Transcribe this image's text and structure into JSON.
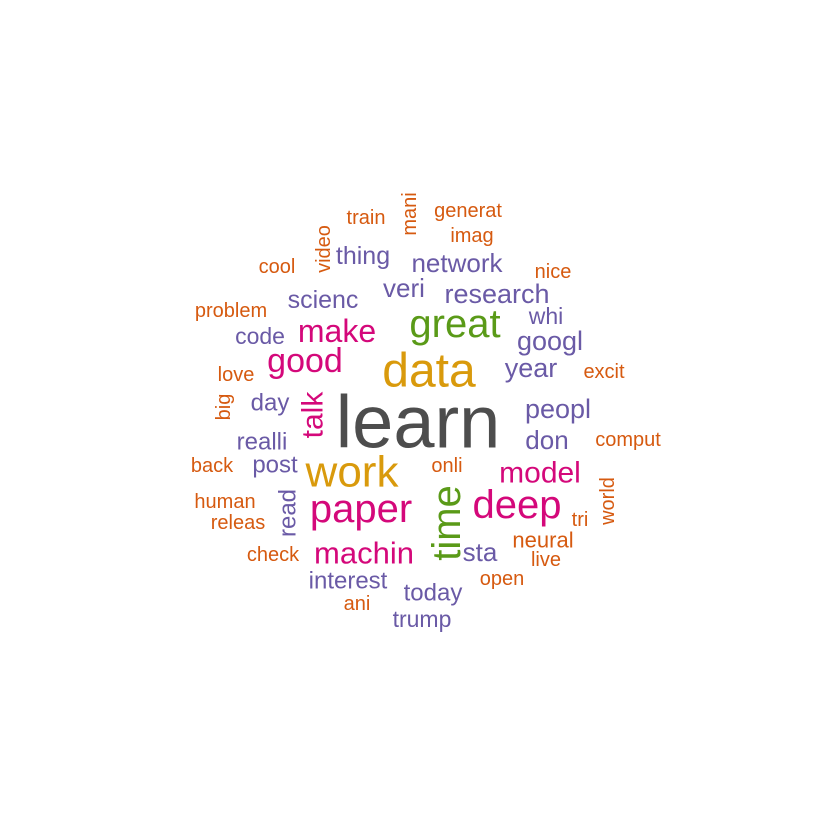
{
  "chart_data": {
    "type": "wordcloud",
    "palette": {
      "gray": "#4d4d4d",
      "gold": "#d99a0c",
      "green": "#5a9a18",
      "magenta": "#d4087a",
      "purple": "#6a5aa6",
      "orange": "#d65a10"
    },
    "words": [
      {
        "text": "learn",
        "group": "gray"
      },
      {
        "text": "data",
        "group": "gold"
      },
      {
        "text": "work",
        "group": "gold"
      },
      {
        "text": "great",
        "group": "green"
      },
      {
        "text": "time",
        "group": "green"
      },
      {
        "text": "paper",
        "group": "magenta"
      },
      {
        "text": "deep",
        "group": "magenta"
      },
      {
        "text": "good",
        "group": "magenta"
      },
      {
        "text": "make",
        "group": "magenta"
      },
      {
        "text": "machin",
        "group": "magenta"
      },
      {
        "text": "talk",
        "group": "magenta"
      },
      {
        "text": "model",
        "group": "magenta"
      },
      {
        "text": "research",
        "group": "purple"
      },
      {
        "text": "network",
        "group": "purple"
      },
      {
        "text": "googl",
        "group": "purple"
      },
      {
        "text": "year",
        "group": "purple"
      },
      {
        "text": "peopl",
        "group": "purple"
      },
      {
        "text": "don",
        "group": "purple"
      },
      {
        "text": "scienc",
        "group": "purple"
      },
      {
        "text": "thing",
        "group": "purple"
      },
      {
        "text": "veri",
        "group": "purple"
      },
      {
        "text": "whi",
        "group": "purple"
      },
      {
        "text": "code",
        "group": "purple"
      },
      {
        "text": "day",
        "group": "purple"
      },
      {
        "text": "realli",
        "group": "purple"
      },
      {
        "text": "post",
        "group": "purple"
      },
      {
        "text": "read",
        "group": "purple"
      },
      {
        "text": "sta",
        "group": "purple"
      },
      {
        "text": "interest",
        "group": "purple"
      },
      {
        "text": "today",
        "group": "purple"
      },
      {
        "text": "trump",
        "group": "purple"
      },
      {
        "text": "train",
        "group": "orange"
      },
      {
        "text": "mani",
        "group": "orange"
      },
      {
        "text": "generat",
        "group": "orange"
      },
      {
        "text": "imag",
        "group": "orange"
      },
      {
        "text": "video",
        "group": "orange"
      },
      {
        "text": "cool",
        "group": "orange"
      },
      {
        "text": "nice",
        "group": "orange"
      },
      {
        "text": "problem",
        "group": "orange"
      },
      {
        "text": "excit",
        "group": "orange"
      },
      {
        "text": "love",
        "group": "orange"
      },
      {
        "text": "big",
        "group": "orange"
      },
      {
        "text": "comput",
        "group": "orange"
      },
      {
        "text": "back",
        "group": "orange"
      },
      {
        "text": "onli",
        "group": "orange"
      },
      {
        "text": "human",
        "group": "orange"
      },
      {
        "text": "world",
        "group": "orange"
      },
      {
        "text": "releas",
        "group": "orange"
      },
      {
        "text": "tri",
        "group": "orange"
      },
      {
        "text": "neural",
        "group": "orange"
      },
      {
        "text": "check",
        "group": "orange"
      },
      {
        "text": "live",
        "group": "orange"
      },
      {
        "text": "open",
        "group": "orange"
      },
      {
        "text": "ani",
        "group": "orange"
      }
    ]
  }
}
